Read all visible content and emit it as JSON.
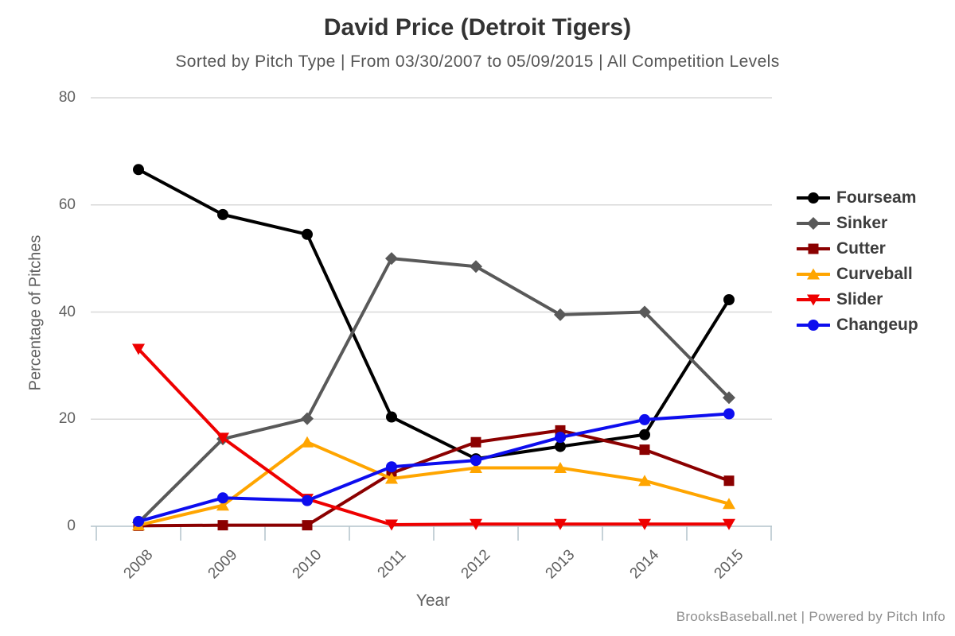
{
  "header": {
    "title": "David Price (Detroit Tigers)",
    "subtitle": "Sorted by Pitch Type | From 03/30/2007 to 05/09/2015 | All Competition Levels"
  },
  "footer": {
    "credit": "BrooksBaseball.net | Powered by Pitch Info"
  },
  "chart_data": {
    "type": "line",
    "title": "David Price (Detroit Tigers)",
    "subtitle": "Sorted by Pitch Type | From 03/30/2007 to 05/09/2015 | All Competition Levels",
    "categories": [
      "2008",
      "2009",
      "2010",
      "2011",
      "2012",
      "2013",
      "2014",
      "2015"
    ],
    "series": [
      {
        "name": "Fourseam",
        "color": "#000000",
        "marker": "circle",
        "values": [
          66.6,
          58.2,
          54.5,
          20.4,
          12.6,
          14.9,
          17.1,
          42.3
        ]
      },
      {
        "name": "Sinker",
        "color": "#595959",
        "marker": "diamond",
        "values": [
          0.7,
          16.3,
          20.1,
          50.0,
          48.5,
          39.5,
          40.0,
          24.0
        ]
      },
      {
        "name": "Cutter",
        "color": "#8b0000",
        "marker": "square",
        "values": [
          0.1,
          0.2,
          0.2,
          9.9,
          15.7,
          17.9,
          14.3,
          8.5
        ]
      },
      {
        "name": "Curveball",
        "color": "#ffa500",
        "marker": "triangle-up",
        "values": [
          0.2,
          3.9,
          15.7,
          8.9,
          10.9,
          10.9,
          8.5,
          4.2
        ]
      },
      {
        "name": "Slider",
        "color": "#ee0000",
        "marker": "triangle-down",
        "values": [
          33.1,
          16.5,
          5.1,
          0.3,
          0.4,
          0.4,
          0.4,
          0.4
        ]
      },
      {
        "name": "Changeup",
        "color": "#0d0dee",
        "marker": "circle",
        "values": [
          0.9,
          5.3,
          4.8,
          11.1,
          12.3,
          16.6,
          19.9,
          21.0
        ]
      }
    ],
    "xlabel": "Year",
    "ylabel": "Percentage of Pitches",
    "ylim": [
      0,
      80
    ],
    "yticks": [
      0,
      20,
      40,
      60,
      80
    ],
    "grid": true,
    "legend_position": "right",
    "grid_color": "#d8d8d8",
    "axis_color": "#b3c3cb"
  }
}
